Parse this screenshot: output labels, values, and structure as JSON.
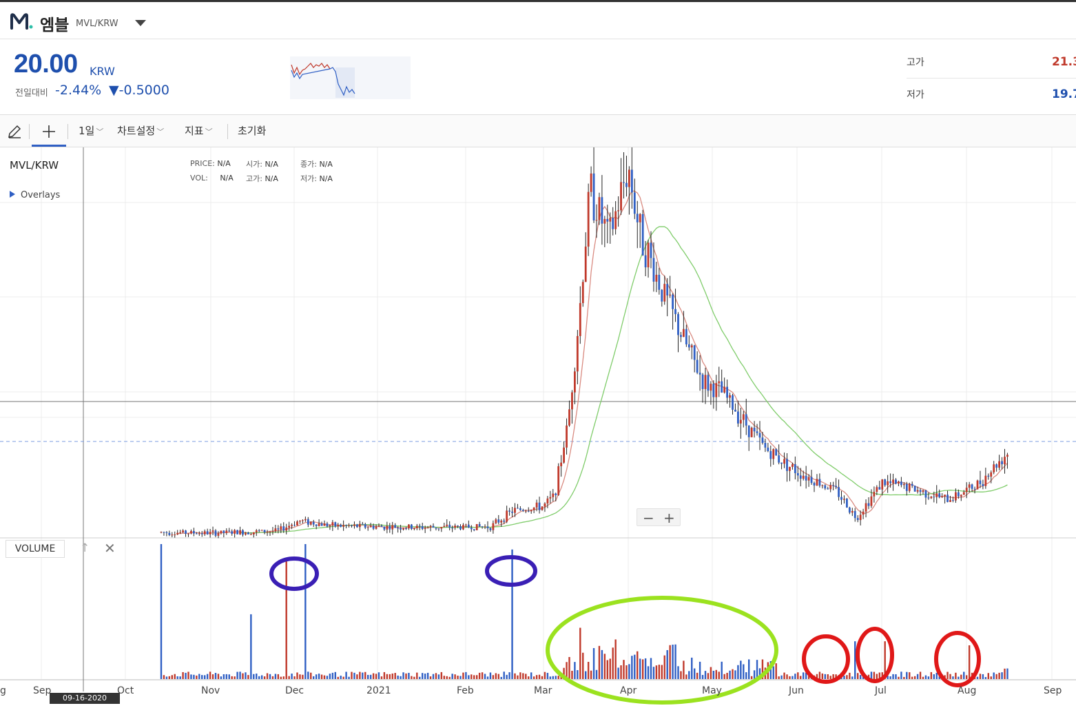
{
  "header": {
    "coin_name": "엠블",
    "pair": "MVL/KRW"
  },
  "price": {
    "value": "20.00",
    "unit": "KRW",
    "change_label": "전일대비",
    "change_pct": "-2.44%",
    "change_abs": "▼-0.5000"
  },
  "high_low": {
    "high_label": "고가",
    "high_value": "21.3",
    "low_label": "저가",
    "low_value": "19.7"
  },
  "toolbar": {
    "interval": "1일",
    "chart_settings": "차트설정",
    "indicators": "지표",
    "reset": "초기화"
  },
  "chart": {
    "pair_label": "MVL/KRW",
    "overlays_label": "Overlays",
    "info": {
      "price_label": "PRICE:",
      "price_value": "N/A",
      "open_label": "시가:",
      "open_value": "N/A",
      "close_label": "종가:",
      "close_value": "N/A",
      "vol_label": "VOL:",
      "vol_value": "N/A",
      "high_label": "고가:",
      "high_value": "N/A",
      "low_label": "저가:",
      "low_value": "N/A"
    },
    "volume_label": "VOLUME",
    "crosshair_date": "09-16-2020",
    "x_ticks": [
      "g",
      "Sep",
      "Oct",
      "Nov",
      "Dec",
      "2021",
      "Feb",
      "Mar",
      "Apr",
      "May",
      "Jun",
      "Jul",
      "Aug",
      "Sep"
    ],
    "colors": {
      "up": "#c0392b",
      "down": "#2f5fc4",
      "ma_short": "#d98a80",
      "ma_long": "#7fcc6a"
    }
  },
  "chart_data": {
    "type": "candlestick",
    "x_range": [
      "2020-08",
      "2021-09"
    ],
    "price_path": [
      [
        "2020-10-14",
        12.5
      ],
      [
        "2020-11-01",
        12.3
      ],
      [
        "2020-11-25",
        12.8
      ],
      [
        "2020-12-03",
        15.2
      ],
      [
        "2020-12-15",
        14.0
      ],
      [
        "2021-01-15",
        13.6
      ],
      [
        "2021-02-10",
        13.8
      ],
      [
        "2021-02-18",
        17.5
      ],
      [
        "2021-03-01",
        18.5
      ],
      [
        "2021-03-05",
        21.0
      ],
      [
        "2021-03-10",
        38.0
      ],
      [
        "2021-03-14",
        62.0
      ],
      [
        "2021-03-18",
        92.0
      ],
      [
        "2021-03-25",
        80.0
      ],
      [
        "2021-04-01",
        97.0
      ],
      [
        "2021-04-05",
        82.0
      ],
      [
        "2021-04-12",
        70.0
      ],
      [
        "2021-04-20",
        58.0
      ],
      [
        "2021-04-28",
        47.0
      ],
      [
        "2021-05-05",
        44.5
      ],
      [
        "2021-05-20",
        32.0
      ],
      [
        "2021-06-01",
        26.5
      ],
      [
        "2021-06-15",
        22.0
      ],
      [
        "2021-06-22",
        15.8
      ],
      [
        "2021-07-01",
        24.0
      ],
      [
        "2021-07-10",
        23.0
      ],
      [
        "2021-07-25",
        20.0
      ],
      [
        "2021-08-05",
        23.5
      ],
      [
        "2021-08-16",
        31.0
      ]
    ],
    "volume_spikes": [
      [
        "2020-10-14",
        1.0
      ],
      [
        "2020-11-15",
        0.48
      ],
      [
        "2020-11-28",
        0.9
      ],
      [
        "2020-12-05",
        1.0
      ],
      [
        "2021-02-18",
        0.96
      ],
      [
        "2021-03-14",
        0.38
      ],
      [
        "2021-06-22",
        0.28
      ],
      [
        "2021-07-02",
        0.28
      ],
      [
        "2021-08-02",
        0.25
      ]
    ]
  }
}
